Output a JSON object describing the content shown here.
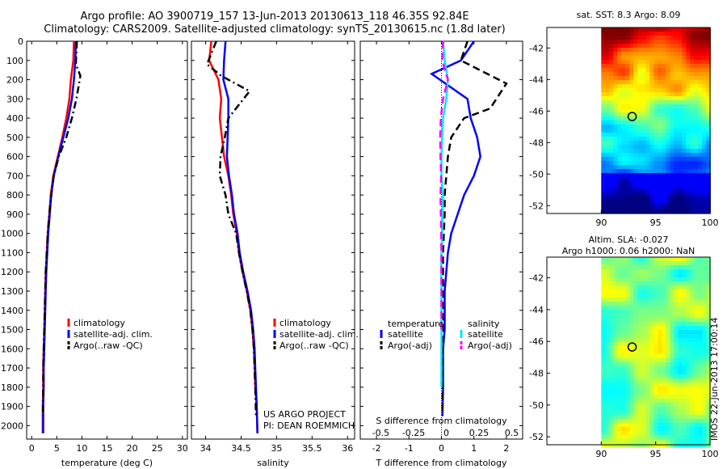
{
  "titles": {
    "line1": "Argo profile: AO 3900719_157 13-Jun-2013 20130613_118 46.35S 92.84E",
    "line2": "Climatology: CARS2009. Satellite-adjusted climatology: synTS_20130615.nc (1.8d later)"
  },
  "stamp": "IMOS 22-Jun-2013 17:00:14",
  "colors": {
    "climatology": "#ff0000",
    "satellite": "#0000ff",
    "argo": "#000000",
    "sal_satellite": "#00e5ff",
    "sal_argo": "#ff00ff"
  },
  "chart_data": [
    {
      "type": "line",
      "panel": "temperature",
      "xlabel": "temperature (deg C)",
      "xlim": [
        -1,
        31
      ],
      "xticks": [
        0,
        5,
        10,
        15,
        20,
        25,
        30
      ],
      "ylim": [
        2070,
        0
      ],
      "yticks": [
        0,
        100,
        200,
        300,
        400,
        500,
        600,
        700,
        800,
        900,
        1000,
        1100,
        1200,
        1300,
        1400,
        1500,
        1600,
        1700,
        1800,
        1900,
        2000
      ],
      "legend": {
        "position": "bottom-center",
        "entries": [
          "climatology",
          "satellite-adj. clim.",
          "Argo(..raw -QC)"
        ]
      },
      "series": [
        {
          "name": "climatology",
          "style": "solid",
          "x": [
            8.4,
            8.3,
            7.8,
            7.5,
            6.9,
            6.1,
            5.2,
            4.3,
            3.8,
            3.5,
            3.2,
            3.0,
            2.8,
            2.7,
            2.6,
            2.5,
            2.4,
            2.3,
            2.3,
            2.2,
            2.2
          ],
          "y": [
            0,
            100,
            200,
            300,
            400,
            500,
            600,
            700,
            800,
            900,
            1000,
            1100,
            1200,
            1300,
            1400,
            1500,
            1600,
            1700,
            1800,
            1900,
            2040
          ]
        },
        {
          "name": "satellite-adj. clim.",
          "style": "solid",
          "x": [
            8.8,
            8.7,
            8.4,
            8.0,
            7.3,
            6.3,
            5.3,
            4.4,
            3.9,
            3.6,
            3.3,
            3.1,
            2.9,
            2.8,
            2.7,
            2.6,
            2.5,
            2.4,
            2.4,
            2.3,
            2.3
          ],
          "y": [
            0,
            100,
            200,
            300,
            400,
            500,
            600,
            700,
            800,
            900,
            1000,
            1100,
            1200,
            1300,
            1400,
            1500,
            1600,
            1700,
            1800,
            1900,
            2040
          ]
        },
        {
          "name": "Argo(..raw -QC)",
          "style": "dashdot",
          "x": [
            9.0,
            8.8,
            9.7,
            8.9,
            8.0,
            6.9,
            5.4,
            4.4,
            3.9,
            3.5,
            3.2,
            3.0,
            2.8,
            2.7,
            2.6,
            2.5,
            2.4,
            2.3,
            2.3,
            2.25
          ],
          "y": [
            0,
            120,
            180,
            300,
            400,
            500,
            600,
            700,
            800,
            900,
            1000,
            1100,
            1200,
            1300,
            1400,
            1500,
            1600,
            1700,
            1800,
            1950
          ]
        }
      ]
    },
    {
      "type": "line",
      "panel": "salinity",
      "xlabel": "salinity",
      "xlim": [
        33.8,
        36.1
      ],
      "xticks": [
        34,
        34.5,
        35,
        35.5,
        36
      ],
      "xticklabels": [
        "34",
        "34.5",
        "35",
        "35.5",
        "36"
      ],
      "ylim": [
        2070,
        0
      ],
      "legend": {
        "position": "bottom-center",
        "entries": [
          "climatology",
          "satellite-adj. clim.",
          "Argo(..raw -QC)"
        ]
      },
      "annotation": [
        "US ARGO PROJECT",
        "PI: DEAN ROEMMICH"
      ],
      "series": [
        {
          "name": "climatology",
          "style": "solid",
          "x": [
            34.08,
            34.05,
            34.18,
            34.22,
            34.2,
            34.23,
            34.26,
            34.32,
            34.36,
            34.39,
            34.44,
            34.47,
            34.52,
            34.58,
            34.63,
            34.66,
            34.68,
            34.69,
            34.7,
            34.72,
            34.73
          ],
          "y": [
            0,
            100,
            200,
            300,
            400,
            500,
            600,
            700,
            800,
            900,
            1000,
            1100,
            1200,
            1300,
            1400,
            1500,
            1600,
            1700,
            1800,
            1900,
            2040
          ]
        },
        {
          "name": "satellite-adj. clim.",
          "style": "solid",
          "x": [
            34.28,
            34.26,
            34.25,
            34.32,
            34.32,
            34.31,
            34.3,
            34.33,
            34.37,
            34.4,
            34.45,
            34.48,
            34.53,
            34.59,
            34.64,
            34.67,
            34.69,
            34.7,
            34.71,
            34.72,
            34.73
          ],
          "y": [
            0,
            100,
            200,
            300,
            400,
            500,
            600,
            700,
            800,
            900,
            1000,
            1100,
            1200,
            1300,
            1400,
            1500,
            1600,
            1700,
            1800,
            1900,
            2040
          ]
        },
        {
          "name": "Argo(..raw -QC)",
          "style": "dashdot",
          "x": [
            34.15,
            34.02,
            34.22,
            34.62,
            34.32,
            34.27,
            34.21,
            34.2,
            34.28,
            34.32,
            34.43,
            34.47,
            34.52,
            34.58,
            34.63,
            34.66,
            34.68,
            34.69,
            34.7,
            34.71
          ],
          "y": [
            0,
            120,
            180,
            260,
            400,
            500,
            600,
            700,
            800,
            900,
            1000,
            1100,
            1200,
            1300,
            1400,
            1500,
            1600,
            1700,
            1800,
            1950
          ]
        }
      ]
    },
    {
      "type": "line",
      "panel": "difference",
      "xlabel": "T difference from climatology",
      "xlabel_top": "S difference from climatology",
      "xlim": [
        -2.5,
        2.5
      ],
      "xticks": [
        -2,
        -1,
        0,
        1,
        2
      ],
      "xticks_top": [
        -0.5,
        -0.25,
        0,
        0.25,
        0.5
      ],
      "xticklabels_top": [
        "-0.5",
        "-0.25",
        "0",
        "0.25",
        "0.5"
      ],
      "ylim": [
        2070,
        0
      ],
      "zero_line": true,
      "legend": {
        "position": "bottom",
        "groups": [
          {
            "title": "temperature",
            "entries": [
              "satellite",
              "Argo(-adj)"
            ]
          },
          {
            "title": "salinity",
            "entries": [
              "satellite",
              "Argo(-adj)"
            ]
          }
        ]
      },
      "series": [
        {
          "name": "temperature satellite",
          "style": "solid",
          "x": [
            1.0,
            0.6,
            -0.3,
            0.8,
            0.9,
            1.1,
            1.2,
            1.0,
            0.7,
            0.5,
            0.3,
            0.2,
            0.15,
            0.1,
            0.1,
            0.1,
            0.05,
            0.05,
            0.05,
            0.03
          ],
          "y": [
            0,
            100,
            170,
            300,
            400,
            500,
            600,
            700,
            800,
            900,
            1000,
            1100,
            1200,
            1300,
            1400,
            1500,
            1600,
            1700,
            1800,
            1950
          ]
        },
        {
          "name": "temperature Argo(-adj)",
          "style": "dashed",
          "x": [
            0.8,
            0.6,
            2.0,
            1.5,
            0.7,
            0.3,
            0.2,
            0.15,
            0.1,
            0.1,
            0.05,
            0.05,
            0.05,
            0.03
          ],
          "y": [
            0,
            100,
            220,
            350,
            400,
            500,
            600,
            700,
            800,
            900,
            1100,
            1300,
            1500,
            1950
          ]
        },
        {
          "name": "salinity satellite",
          "style": "solid",
          "x": [
            0.05,
            0.1,
            0.2,
            0.15,
            0.05,
            0.02,
            0,
            0,
            0.05,
            0.03,
            0.02,
            0,
            -0.01,
            0,
            0,
            0
          ],
          "y": [
            0,
            100,
            200,
            300,
            400,
            500,
            600,
            700,
            800,
            900,
            1000,
            1100,
            1200,
            1300,
            1400,
            1800
          ]
        },
        {
          "name": "salinity Argo(-adj)",
          "style": "dashed",
          "x": [
            0.05,
            0.02,
            0.2,
            0.05,
            -0.02,
            -0.04,
            -0.03,
            -0.01,
            -0.03,
            -0.02,
            -0.01,
            0,
            0,
            0
          ],
          "y": [
            0,
            100,
            200,
            300,
            400,
            500,
            600,
            700,
            800,
            900,
            1000,
            1100,
            1200,
            1500
          ]
        }
      ]
    },
    {
      "type": "heatmap",
      "panel": "sat-sst-map",
      "title": "sat. SST: 8.3 Argo: 8.09",
      "xticks": [
        90,
        95,
        100
      ],
      "yticks": [
        -42,
        -44,
        -46,
        -48,
        -50,
        -52
      ],
      "xlim": [
        85,
        100
      ],
      "ylim": [
        -52.5,
        -40.7
      ],
      "marker": {
        "lon": 92.84,
        "lat": -46.35
      }
    },
    {
      "type": "heatmap",
      "panel": "sla-map",
      "title": "Altim. SLA: -0.027",
      "subtitle": "Argo h1000: 0.06 h2000: NaN",
      "xticks": [
        90,
        95,
        100
      ],
      "yticks": [
        -42,
        -44,
        -46,
        -48,
        -50,
        -52
      ],
      "xlim": [
        85,
        100
      ],
      "ylim": [
        -52.5,
        -40.7
      ],
      "marker": {
        "lon": 92.84,
        "lat": -46.35
      }
    }
  ]
}
